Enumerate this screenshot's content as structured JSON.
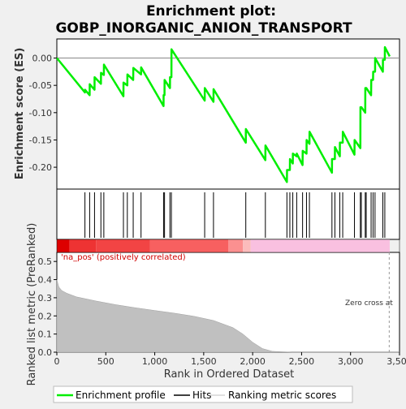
{
  "chart_data": {
    "type": "line",
    "title_line1": "Enrichment plot:",
    "title_line2": "GOBP_INORGANIC_ANION_TRANSPORT",
    "ylabel_top": "Enrichment score (ES)",
    "ylabel_bottom": "Ranked list metric (PreRanked)",
    "xlabel": "Rank in Ordered Dataset",
    "xlim": [
      0,
      3500
    ],
    "es_ylim": [
      -0.24,
      0.035
    ],
    "metric_ylim": [
      0,
      0.55
    ],
    "es_ticks": [
      0.0,
      -0.05,
      -0.1,
      -0.15,
      -0.2
    ],
    "es_tick_labels": [
      "0.00",
      "-0.05",
      "-0.10",
      "-0.15",
      "-0.20"
    ],
    "metric_ticks": [
      0.0,
      0.1,
      0.2,
      0.3,
      0.4,
      0.5
    ],
    "metric_tick_labels": [
      "0.0",
      "0.1",
      "0.2",
      "0.3",
      "0.4",
      "0.5"
    ],
    "x_ticks": [
      0,
      500,
      1000,
      1500,
      2000,
      2500,
      3000,
      3500
    ],
    "x_tick_labels": [
      "0",
      "500",
      "1,000",
      "1,500",
      "2,000",
      "2,500",
      "3,000",
      "3,500"
    ],
    "zero_cross": 3395,
    "zero_cross_label": "Zero cross at",
    "pos_label": "'na_pos' (positively correlated)",
    "es_color": "#00ee00",
    "hits": [
      287,
      335,
      385,
      450,
      480,
      680,
      720,
      780,
      860,
      1090,
      1100,
      1155,
      1170,
      1510,
      1600,
      1930,
      2130,
      2350,
      2380,
      2410,
      2450,
      2510,
      2550,
      2580,
      2810,
      2840,
      2890,
      2920,
      3040,
      3100,
      3110,
      3150,
      3160,
      3210,
      3230,
      3250,
      3330,
      3350
    ],
    "es_points": [
      [
        0,
        0.0
      ],
      [
        287,
        -0.063
      ],
      [
        288,
        -0.058
      ],
      [
        335,
        -0.068
      ],
      [
        336,
        -0.048
      ],
      [
        385,
        -0.058
      ],
      [
        386,
        -0.035
      ],
      [
        450,
        -0.047
      ],
      [
        451,
        -0.027
      ],
      [
        480,
        -0.031
      ],
      [
        481,
        -0.012
      ],
      [
        680,
        -0.07
      ],
      [
        681,
        -0.045
      ],
      [
        720,
        -0.05
      ],
      [
        721,
        -0.03
      ],
      [
        780,
        -0.04
      ],
      [
        781,
        -0.018
      ],
      [
        860,
        -0.03
      ],
      [
        861,
        -0.017
      ],
      [
        1090,
        -0.088
      ],
      [
        1091,
        -0.068
      ],
      [
        1100,
        -0.068
      ],
      [
        1101,
        -0.04
      ],
      [
        1155,
        -0.055
      ],
      [
        1156,
        -0.035
      ],
      [
        1170,
        -0.035
      ],
      [
        1171,
        0.016
      ],
      [
        1510,
        -0.078
      ],
      [
        1511,
        -0.055
      ],
      [
        1600,
        -0.08
      ],
      [
        1601,
        -0.057
      ],
      [
        1930,
        -0.155
      ],
      [
        1931,
        -0.13
      ],
      [
        2130,
        -0.187
      ],
      [
        2131,
        -0.16
      ],
      [
        2350,
        -0.227
      ],
      [
        2351,
        -0.205
      ],
      [
        2380,
        -0.205
      ],
      [
        2381,
        -0.185
      ],
      [
        2410,
        -0.193
      ],
      [
        2411,
        -0.175
      ],
      [
        2450,
        -0.18
      ],
      [
        2451,
        -0.175
      ],
      [
        2510,
        -0.196
      ],
      [
        2511,
        -0.17
      ],
      [
        2550,
        -0.175
      ],
      [
        2551,
        -0.15
      ],
      [
        2580,
        -0.157
      ],
      [
        2581,
        -0.135
      ],
      [
        2810,
        -0.21
      ],
      [
        2811,
        -0.185
      ],
      [
        2840,
        -0.185
      ],
      [
        2841,
        -0.163
      ],
      [
        2890,
        -0.18
      ],
      [
        2891,
        -0.155
      ],
      [
        2920,
        -0.155
      ],
      [
        2921,
        -0.135
      ],
      [
        3040,
        -0.177
      ],
      [
        3041,
        -0.15
      ],
      [
        3100,
        -0.165
      ],
      [
        3101,
        -0.09
      ],
      [
        3110,
        -0.09
      ],
      [
        3111,
        -0.09
      ],
      [
        3150,
        -0.1
      ],
      [
        3151,
        -0.055
      ],
      [
        3160,
        -0.055
      ],
      [
        3161,
        -0.055
      ],
      [
        3210,
        -0.068
      ],
      [
        3211,
        -0.04
      ],
      [
        3230,
        -0.04
      ],
      [
        3231,
        -0.025
      ],
      [
        3250,
        -0.025
      ],
      [
        3251,
        0.0
      ],
      [
        3330,
        -0.025
      ],
      [
        3331,
        -0.003
      ],
      [
        3350,
        -0.003
      ],
      [
        3351,
        0.02
      ],
      [
        3400,
        0.003
      ]
    ],
    "metric_curve": [
      [
        0,
        0.4
      ],
      [
        20,
        0.36
      ],
      [
        50,
        0.34
      ],
      [
        100,
        0.325
      ],
      [
        200,
        0.305
      ],
      [
        400,
        0.282
      ],
      [
        600,
        0.262
      ],
      [
        800,
        0.245
      ],
      [
        1000,
        0.23
      ],
      [
        1200,
        0.215
      ],
      [
        1400,
        0.198
      ],
      [
        1600,
        0.175
      ],
      [
        1800,
        0.135
      ],
      [
        1900,
        0.1
      ],
      [
        2000,
        0.055
      ],
      [
        2100,
        0.02
      ],
      [
        2200,
        0.005
      ],
      [
        2400,
        0.0
      ],
      [
        3500,
        0.0
      ]
    ],
    "heatbar_segments": [
      [
        0,
        130,
        "#dd0000"
      ],
      [
        130,
        400,
        "#ee3333"
      ],
      [
        400,
        950,
        "#f24444"
      ],
      [
        950,
        1750,
        "#f76060"
      ],
      [
        1750,
        1900,
        "#fb9090"
      ],
      [
        1900,
        1980,
        "#fbbcbc"
      ],
      [
        1980,
        3400,
        "#f9c0e0"
      ]
    ],
    "legend": [
      {
        "label": "Enrichment profile",
        "color": "#00ee00"
      },
      {
        "label": "Hits",
        "color": "#000000"
      },
      {
        "label": "Ranking metric scores",
        "color": "#c0c0c0"
      }
    ]
  }
}
